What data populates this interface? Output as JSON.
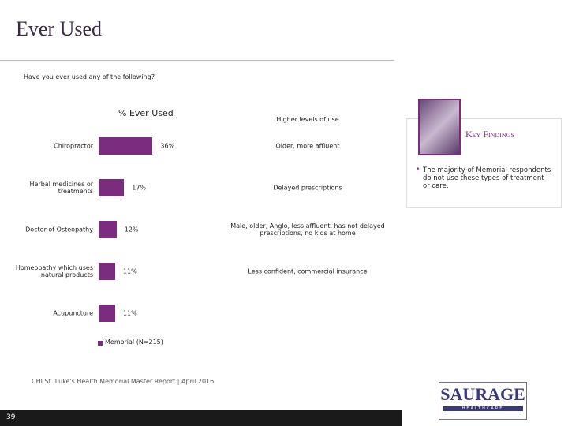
{
  "slide": {
    "title": "Ever Used",
    "question": "Have you ever used any of the following?",
    "footer": "CHI St. Luke's Health Memorial Master Report | April 2016",
    "page_number": "39",
    "logo": "SAURAGE",
    "logo_sub": "HEALTHCARE"
  },
  "chart_data": {
    "type": "bar",
    "orientation": "horizontal",
    "title": "% Ever Used",
    "categories": [
      "Chiropractor",
      "Herbal medicines or treatments",
      "Doctor of Osteopathy",
      "Homeopathy which uses natural products",
      "Acupuncture"
    ],
    "series": [
      {
        "name": "Memorial (N=215)",
        "color": "#7b2c7e",
        "values": [
          36,
          17,
          12,
          11,
          11
        ],
        "value_labels": [
          "36%",
          "17%",
          "12%",
          "11%",
          "11%"
        ]
      }
    ]
  },
  "notes": {
    "header": "Higher levels of use",
    "items": [
      "Older, more affluent",
      "Delayed prescriptions",
      "Male, older, Anglo, less affluent, has not delayed prescriptions, no kids at home",
      "Less confident, commercial insurance",
      null
    ]
  },
  "key_findings": {
    "title": "Key Findings",
    "bullets": [
      "The majority of Memorial respondents do not use these types of treatment or care."
    ]
  }
}
